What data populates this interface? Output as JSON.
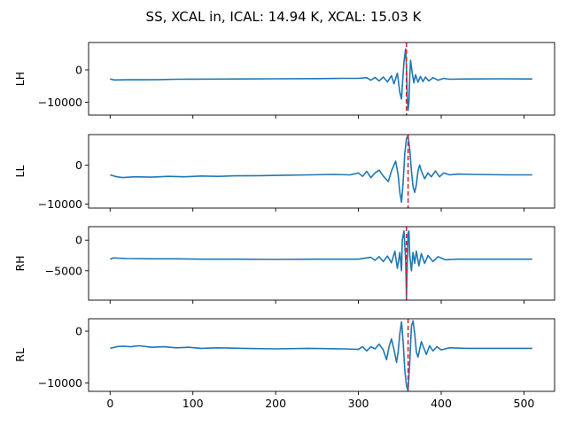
{
  "title": "SS, XCAL in, ICAL: 14.94 K, XCAL: 15.03 K",
  "colors": {
    "series": "#1f77b4",
    "marker": "#d62728"
  },
  "chart_data": {
    "type": "line",
    "shared_x": true,
    "xlim": [
      -26,
      537
    ],
    "xticks": [
      0,
      100,
      200,
      300,
      400,
      500
    ],
    "panels": [
      {
        "ylabel": "LH",
        "ylim": [
          -14000,
          8500
        ],
        "yticks": [
          0,
          -10000
        ],
        "vline_x": 358,
        "series": [
          {
            "values": [
              [
                0,
                -2800
              ],
              [
                5,
                -3100
              ],
              [
                20,
                -3050
              ],
              [
                40,
                -3050
              ],
              [
                60,
                -3000
              ],
              [
                80,
                -2900
              ],
              [
                100,
                -2850
              ],
              [
                150,
                -2800
              ],
              [
                200,
                -2750
              ],
              [
                250,
                -2700
              ],
              [
                280,
                -2600
              ],
              [
                300,
                -2600
              ],
              [
                310,
                -2400
              ],
              [
                315,
                -3200
              ],
              [
                320,
                -2300
              ],
              [
                325,
                -3400
              ],
              [
                330,
                -2200
              ],
              [
                335,
                -3700
              ],
              [
                340,
                -1800
              ],
              [
                343,
                -4300
              ],
              [
                347,
                -1000
              ],
              [
                350,
                -7000
              ],
              [
                352,
                -9000
              ],
              [
                353,
                -5000
              ],
              [
                355,
                2500
              ],
              [
                357,
                6500
              ],
              [
                358,
                1000
              ],
              [
                359,
                -8000
              ],
              [
                360,
                -12500
              ],
              [
                361,
                -10000
              ],
              [
                362,
                -2000
              ],
              [
                363,
                3000
              ],
              [
                365,
                -1000
              ],
              [
                367,
                -4000
              ],
              [
                369,
                -1500
              ],
              [
                372,
                -3800
              ],
              [
                375,
                -2000
              ],
              [
                378,
                -3600
              ],
              [
                381,
                -2200
              ],
              [
                385,
                -3400
              ],
              [
                390,
                -2400
              ],
              [
                396,
                -3200
              ],
              [
                403,
                -2600
              ],
              [
                410,
                -2900
              ],
              [
                430,
                -2800
              ],
              [
                470,
                -2750
              ],
              [
                510,
                -2800
              ]
            ]
          }
        ]
      },
      {
        "ylabel": "LL",
        "ylim": [
          -11000,
          7800
        ],
        "yticks": [
          0,
          -10000
        ],
        "vline_x": 360,
        "series": [
          {
            "values": [
              [
                0,
                -2500
              ],
              [
                8,
                -3000
              ],
              [
                15,
                -3200
              ],
              [
                30,
                -3000
              ],
              [
                50,
                -3100
              ],
              [
                70,
                -2900
              ],
              [
                90,
                -3000
              ],
              [
                110,
                -2800
              ],
              [
                130,
                -2900
              ],
              [
                150,
                -2750
              ],
              [
                180,
                -2700
              ],
              [
                210,
                -2600
              ],
              [
                240,
                -2500
              ],
              [
                270,
                -2400
              ],
              [
                290,
                -2500
              ],
              [
                300,
                -2000
              ],
              [
                305,
                -2900
              ],
              [
                310,
                -1600
              ],
              [
                315,
                -3200
              ],
              [
                320,
                -2000
              ],
              [
                325,
                -1300
              ],
              [
                330,
                -2800
              ],
              [
                336,
                -4200
              ],
              [
                340,
                -1500
              ],
              [
                345,
                1000
              ],
              [
                348,
                -2500
              ],
              [
                350,
                -7000
              ],
              [
                352,
                -9500
              ],
              [
                354,
                -4500
              ],
              [
                356,
                3000
              ],
              [
                358,
                6800
              ],
              [
                360,
                7500
              ],
              [
                362,
                4000
              ],
              [
                364,
                -1500
              ],
              [
                366,
                -5500
              ],
              [
                368,
                -7000
              ],
              [
                370,
                -5000
              ],
              [
                372,
                -1500
              ],
              [
                374,
                0
              ],
              [
                376,
                -1500
              ],
              [
                380,
                -3500
              ],
              [
                384,
                -2000
              ],
              [
                388,
                -3000
              ],
              [
                393,
                -1500
              ],
              [
                398,
                -3000
              ],
              [
                403,
                -2000
              ],
              [
                410,
                -2500
              ],
              [
                420,
                -2300
              ],
              [
                440,
                -2400
              ],
              [
                480,
                -2500
              ],
              [
                510,
                -2500
              ]
            ]
          }
        ]
      },
      {
        "ylabel": "RH",
        "ylim": [
          -9800,
          2200
        ],
        "yticks": [
          0,
          -5000
        ],
        "vline_x": 358,
        "series": [
          {
            "values": [
              [
                0,
                -3100
              ],
              [
                4,
                -2900
              ],
              [
                20,
                -3000
              ],
              [
                50,
                -3050
              ],
              [
                80,
                -3050
              ],
              [
                110,
                -3100
              ],
              [
                150,
                -3100
              ],
              [
                200,
                -3150
              ],
              [
                250,
                -3100
              ],
              [
                280,
                -3100
              ],
              [
                300,
                -3100
              ],
              [
                315,
                -2800
              ],
              [
                320,
                -3300
              ],
              [
                325,
                -2700
              ],
              [
                330,
                -3500
              ],
              [
                335,
                -2600
              ],
              [
                340,
                -3700
              ],
              [
                344,
                -1800
              ],
              [
                347,
                -4600
              ],
              [
                350,
                -2000
              ],
              [
                352,
                -5000
              ],
              [
                353,
                0
              ],
              [
                355,
                1500
              ],
              [
                357,
                -3000
              ],
              [
                358,
                -9500
              ],
              [
                359,
                -4000
              ],
              [
                360,
                1200
              ],
              [
                361,
                1500
              ],
              [
                362,
                -2500
              ],
              [
                364,
                -5000
              ],
              [
                366,
                -2000
              ],
              [
                368,
                -3800
              ],
              [
                370,
                -1800
              ],
              [
                373,
                -4200
              ],
              [
                376,
                -2200
              ],
              [
                380,
                -3800
              ],
              [
                384,
                -2500
              ],
              [
                390,
                -3500
              ],
              [
                396,
                -2700
              ],
              [
                405,
                -3200
              ],
              [
                420,
                -3100
              ],
              [
                460,
                -3100
              ],
              [
                510,
                -3100
              ]
            ]
          }
        ]
      },
      {
        "ylabel": "RL",
        "ylim": [
          -11600,
          2400
        ],
        "yticks": [
          0,
          -10000
        ],
        "vline_x": 360,
        "series": [
          {
            "values": [
              [
                0,
                -3300
              ],
              [
                8,
                -3000
              ],
              [
                15,
                -2900
              ],
              [
                25,
                -3000
              ],
              [
                35,
                -2800
              ],
              [
                50,
                -3100
              ],
              [
                65,
                -3000
              ],
              [
                80,
                -3200
              ],
              [
                95,
                -3100
              ],
              [
                110,
                -3300
              ],
              [
                130,
                -3200
              ],
              [
                160,
                -3300
              ],
              [
                200,
                -3400
              ],
              [
                240,
                -3300
              ],
              [
                280,
                -3400
              ],
              [
                300,
                -3500
              ],
              [
                305,
                -3000
              ],
              [
                310,
                -3800
              ],
              [
                315,
                -3000
              ],
              [
                320,
                -3400
              ],
              [
                325,
                -2500
              ],
              [
                330,
                -3600
              ],
              [
                334,
                -5500
              ],
              [
                337,
                -3000
              ],
              [
                340,
                -1500
              ],
              [
                343,
                -3500
              ],
              [
                346,
                -6000
              ],
              [
                348,
                -4000
              ],
              [
                350,
                -500
              ],
              [
                352,
                1800
              ],
              [
                354,
                -2000
              ],
              [
                356,
                -7500
              ],
              [
                358,
                -10500
              ],
              [
                360,
                -11500
              ],
              [
                362,
                -6000
              ],
              [
                364,
                1000
              ],
              [
                366,
                2000
              ],
              [
                368,
                -500
              ],
              [
                370,
                -4000
              ],
              [
                372,
                -5000
              ],
              [
                374,
                -3500
              ],
              [
                376,
                -2000
              ],
              [
                378,
                -2800
              ],
              [
                382,
                -4500
              ],
              [
                386,
                -2800
              ],
              [
                390,
                -3800
              ],
              [
                395,
                -3000
              ],
              [
                400,
                -3600
              ],
              [
                410,
                -3200
              ],
              [
                430,
                -3300
              ],
              [
                470,
                -3300
              ],
              [
                510,
                -3300
              ]
            ]
          }
        ]
      }
    ]
  }
}
